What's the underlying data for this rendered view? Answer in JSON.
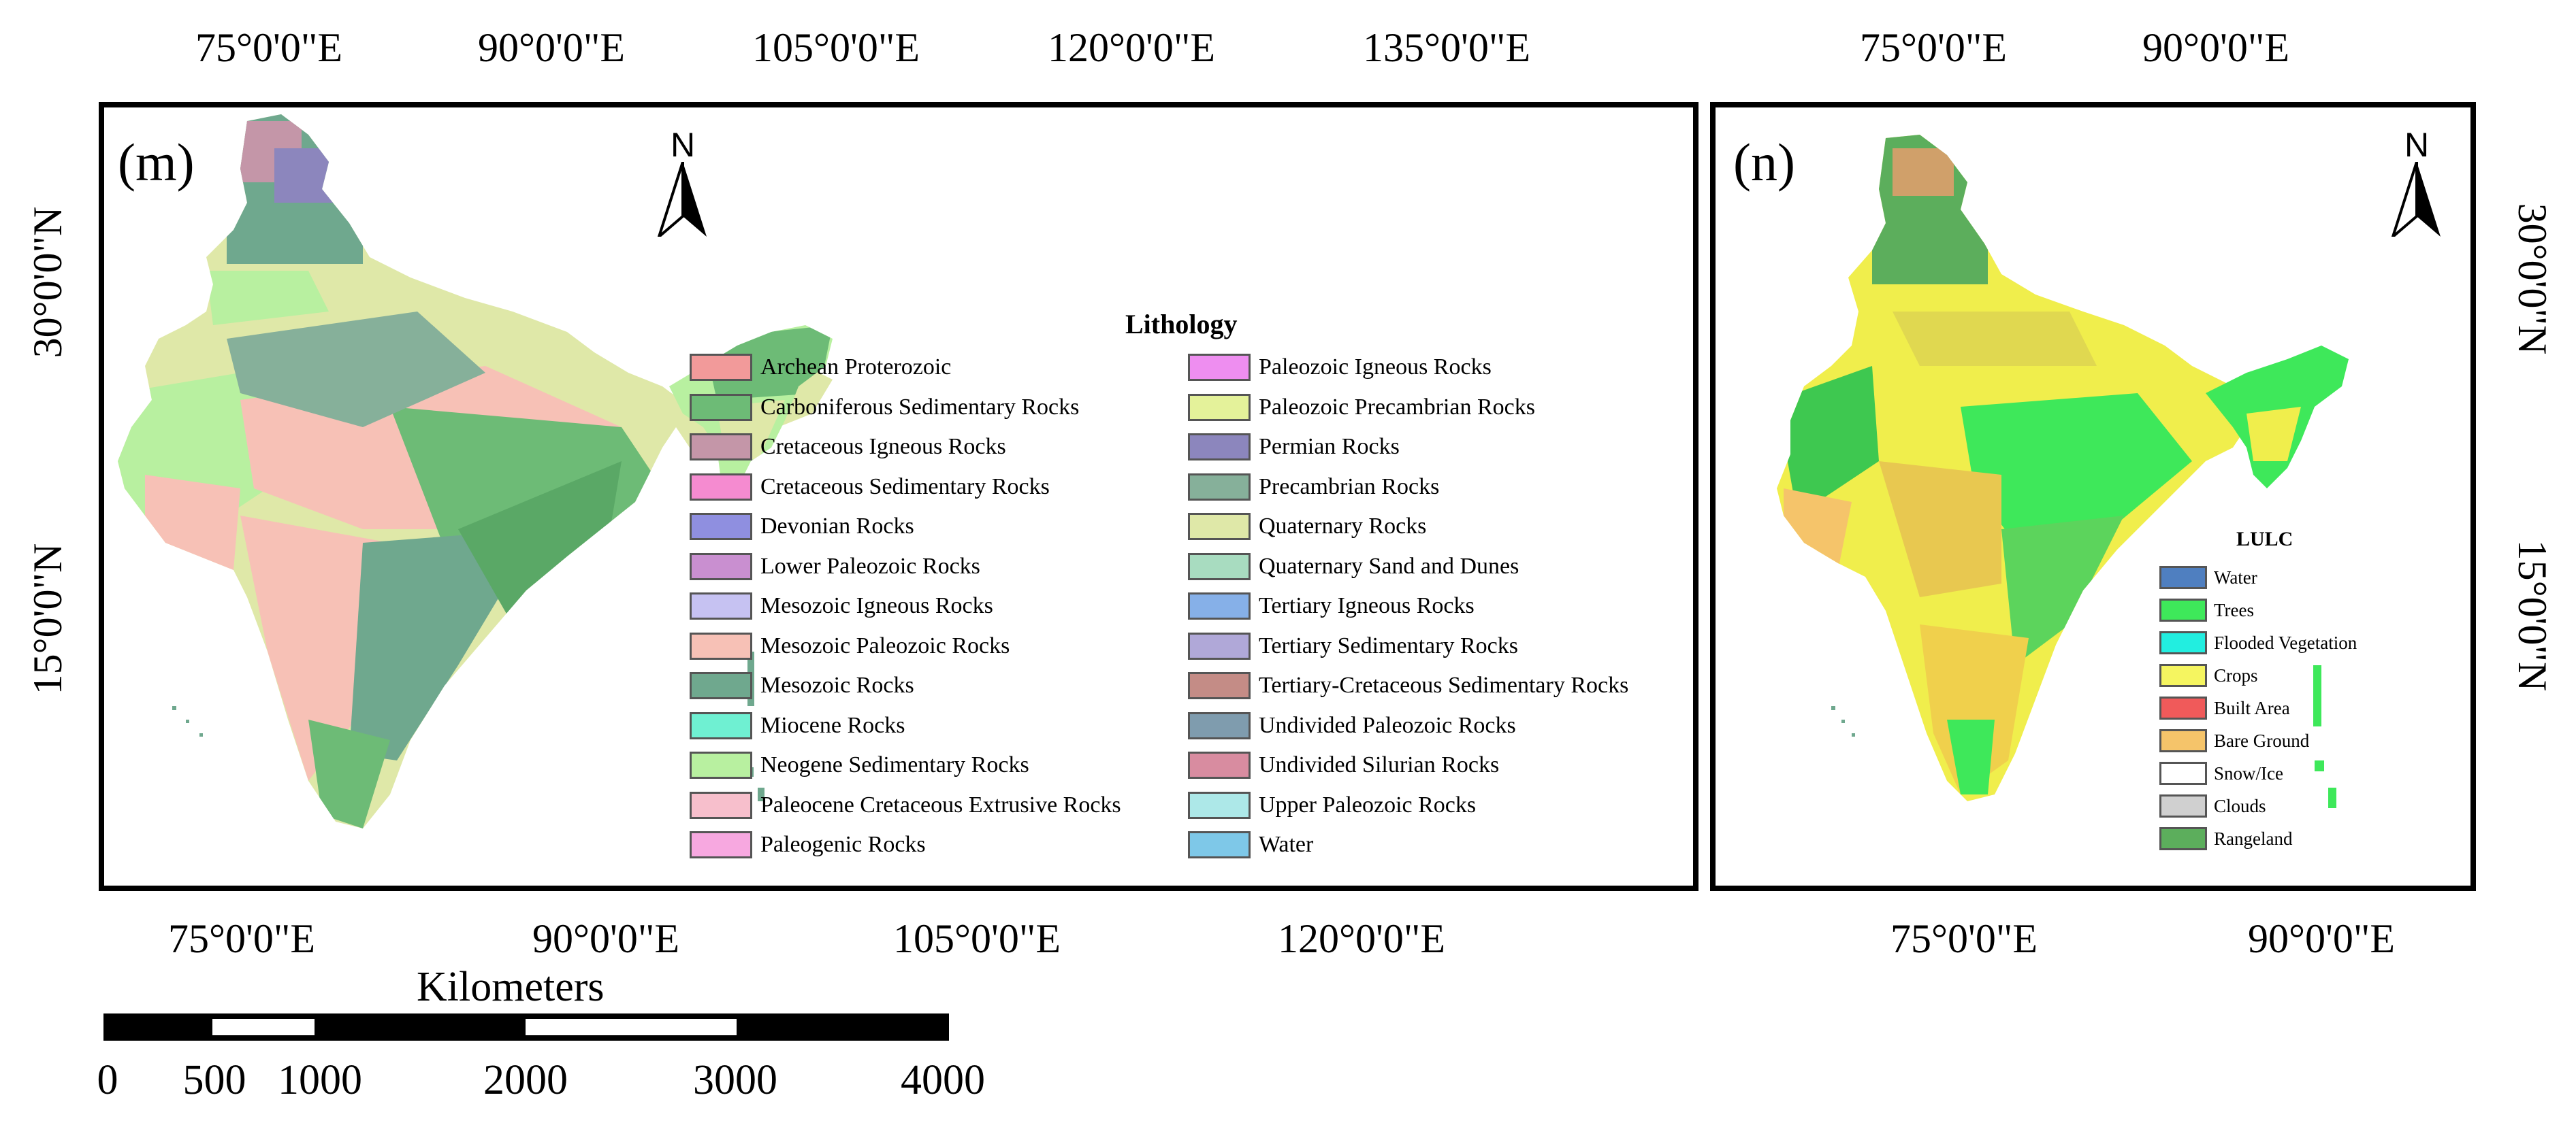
{
  "panel_m": {
    "label": "(m)",
    "top_coords": [
      "75°0'0\"E",
      "90°0'0\"E",
      "105°0'0\"E",
      "120°0'0\"E",
      "135°0'0\"E"
    ],
    "bottom_coords": [
      "75°0'0\"E",
      "90°0'0\"E",
      "105°0'0\"E",
      "120°0'0\"E"
    ],
    "left_coords": [
      "30°0'0\"N",
      "15°0'0\"N"
    ],
    "north_label": "N",
    "legend": {
      "title": "Lithology",
      "items": [
        {
          "label": "Archean Proterozoic",
          "color": "#f29a9a"
        },
        {
          "label": "Carboniferous Sedimentary Rocks",
          "color": "#6dbb76"
        },
        {
          "label": "Cretaceous Igneous Rocks",
          "color": "#c496a8"
        },
        {
          "label": "Cretaceous Sedimentary Rocks",
          "color": "#f58bd0"
        },
        {
          "label": "Devonian Rocks",
          "color": "#8f8fe0"
        },
        {
          "label": "Lower Paleozoic Rocks",
          "color": "#c98fd0"
        },
        {
          "label": "Mesozoic Igneous Rocks",
          "color": "#c6c2f2"
        },
        {
          "label": "Mesozoic Paleozoic Rocks",
          "color": "#f7c1b6"
        },
        {
          "label": "Mesozoic Rocks",
          "color": "#6fa88e"
        },
        {
          "label": "Miocene Rocks",
          "color": "#6ff0d2"
        },
        {
          "label": "Neogene Sedimentary Rocks",
          "color": "#b8f0a0"
        },
        {
          "label": "Paleocene Cretaceous Extrusive Rocks",
          "color": "#f7bfcc"
        },
        {
          "label": "Paleogenic Rocks",
          "color": "#f7a8e0"
        },
        {
          "label": "Paleozoic Igneous Rocks",
          "color": "#ee8ef0"
        },
        {
          "label": "Paleozoic Precambrian Rocks",
          "color": "#e4f29a"
        },
        {
          "label": "Permian Rocks",
          "color": "#8c86bd"
        },
        {
          "label": "Precambrian Rocks",
          "color": "#86b09a"
        },
        {
          "label": "Quaternary Rocks",
          "color": "#dfe8a8"
        },
        {
          "label": "Quaternary Sand and Dunes",
          "color": "#a8dcc0"
        },
        {
          "label": "Tertiary Igneous Rocks",
          "color": "#86b0e8"
        },
        {
          "label": "Tertiary Sedimentary Rocks",
          "color": "#b0a8d8"
        },
        {
          "label": "Tertiary-Cretaceous Sedimentary Rocks",
          "color": "#c48c86"
        },
        {
          "label": "Undivided Paleozoic Rocks",
          "color": "#7f9cae"
        },
        {
          "label": "Undivided Silurian Rocks",
          "color": "#d88ca0"
        },
        {
          "label": "Upper Paleozoic Rocks",
          "color": "#ade8e8"
        },
        {
          "label": "Water",
          "color": "#7ec8e8"
        }
      ]
    }
  },
  "panel_n": {
    "label": "(n)",
    "top_coords": [
      "75°0'0\"E",
      "90°0'0\"E"
    ],
    "bottom_coords": [
      "75°0'0\"E",
      "90°0'0\"E"
    ],
    "right_coords": [
      "30°0'0\"N",
      "15°0'0\"N"
    ],
    "north_label": "N",
    "legend": {
      "title": "LULC",
      "items": [
        {
          "label": "Water",
          "color": "#4f7fc0"
        },
        {
          "label": "Trees",
          "color": "#3ee85a"
        },
        {
          "label": "Flooded Vegetation",
          "color": "#22eee0"
        },
        {
          "label": "Crops",
          "color": "#f5f560"
        },
        {
          "label": "Built Area",
          "color": "#f05a5a"
        },
        {
          "label": "Bare Ground",
          "color": "#f5c46a"
        },
        {
          "label": "Snow/Ice",
          "color": "#ffffff"
        },
        {
          "label": "Clouds",
          "color": "#d0d0d0"
        },
        {
          "label": "Rangeland",
          "color": "#5cae5c"
        }
      ]
    }
  },
  "scalebar": {
    "title": "Kilometers",
    "labels": [
      "0",
      "500",
      "1000",
      "2000",
      "3000",
      "4000"
    ]
  }
}
